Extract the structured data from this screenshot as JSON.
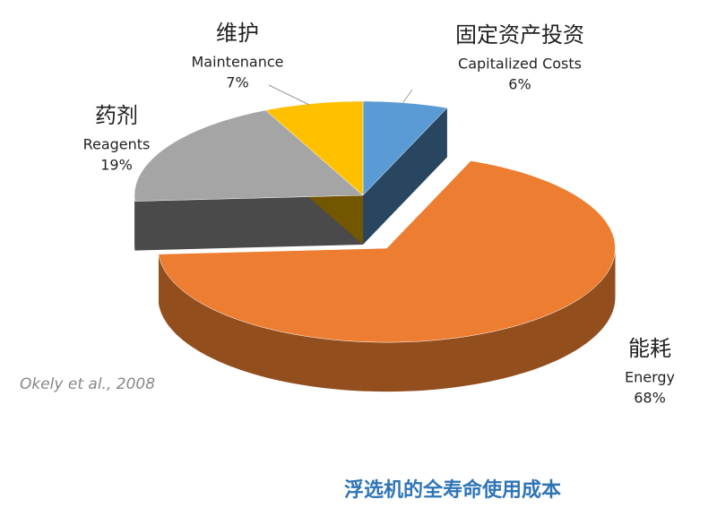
{
  "chart_data": {
    "type": "pie",
    "categories": [
      "Capitalized Costs",
      "Energy",
      "Reagents",
      "Maintenance"
    ],
    "categories_zh": [
      "固定资产投资",
      "能耗",
      "药剂",
      "维护"
    ],
    "values": [
      6,
      68,
      19,
      7
    ],
    "value_labels": [
      "6%",
      "68%",
      "19%",
      "7%"
    ],
    "colors": [
      "#5b9bd5",
      "#ed7d31",
      "#a5a5a5",
      "#ffc000"
    ],
    "exploded": [
      false,
      true,
      false,
      false
    ],
    "source": "Okely et al., 2008",
    "caption": "浮选机的全寿命使用成本"
  }
}
